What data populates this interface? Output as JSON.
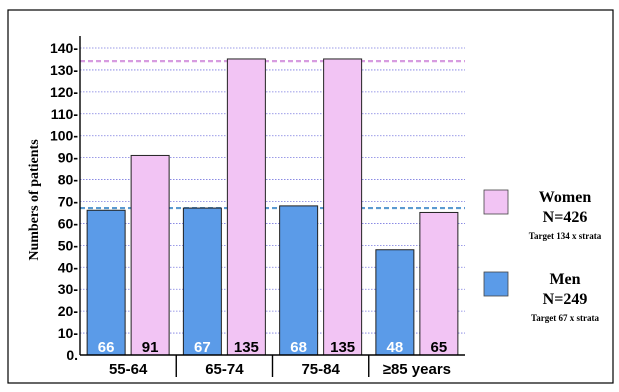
{
  "colors": {
    "men": "#5b9be8",
    "women": "#f2c4f4",
    "grid": "#7a7ae0",
    "target_women_line": "#d79be0",
    "target_men_line": "#5a9ad0",
    "axis": "#000000"
  },
  "chart_data": {
    "type": "bar",
    "ylabel": "Numbers of patients",
    "ylim": [
      0,
      140
    ],
    "yticks": [
      0,
      10,
      20,
      30,
      40,
      50,
      60,
      70,
      80,
      90,
      100,
      110,
      120,
      130,
      140
    ],
    "ytick_labels": [
      "0.",
      "10-",
      "20-",
      "30-",
      "40-",
      "50-",
      "60-",
      "70-",
      "80-",
      "90-",
      "100-",
      "110-",
      "120-",
      "130-",
      "140-"
    ],
    "grid": true,
    "categories": [
      "55-64",
      "65-74",
      "75-84",
      "≥85 years"
    ],
    "series": [
      {
        "name": "Men",
        "values": [
          66,
          67,
          68,
          48
        ]
      },
      {
        "name": "Women",
        "values": [
          91,
          135,
          135,
          65
        ]
      }
    ],
    "bar_labels": {
      "Men": [
        "66",
        "67",
        "68",
        "48"
      ],
      "Women": [
        "91",
        "135",
        "135",
        "65"
      ]
    },
    "target_lines": [
      {
        "series": "Women",
        "value": 134
      },
      {
        "series": "Men",
        "value": 67
      }
    ],
    "legend": [
      {
        "series": "Women",
        "label": "Women",
        "n": "N=426",
        "target": "Target 134 x strata"
      },
      {
        "series": "Men",
        "label": "Men",
        "n": "N=249",
        "target": "Target 67 x strata"
      }
    ],
    "legend_position": "right"
  }
}
